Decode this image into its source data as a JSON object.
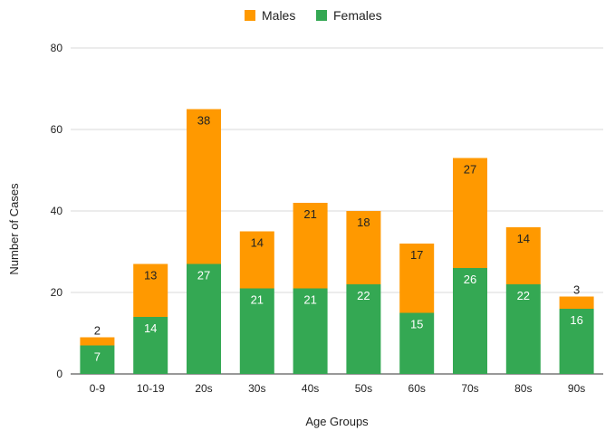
{
  "chart_data": {
    "type": "bar",
    "stacked": true,
    "categories": [
      "0-9",
      "10-19",
      "20s",
      "30s",
      "40s",
      "50s",
      "60s",
      "70s",
      "80s",
      "90s"
    ],
    "series": [
      {
        "name": "Females",
        "color": "#34a853",
        "values": [
          7,
          14,
          27,
          21,
          21,
          22,
          15,
          26,
          22,
          16
        ]
      },
      {
        "name": "Males",
        "color": "#ff9900",
        "values": [
          2,
          13,
          38,
          14,
          21,
          18,
          17,
          27,
          14,
          3
        ]
      }
    ],
    "legend_order": [
      "Males",
      "Females"
    ],
    "legend_position": "top-center",
    "xlabel": "Age Groups",
    "ylabel": "Number of Cases",
    "ylim": [
      0,
      80
    ],
    "yticks": [
      0,
      20,
      40,
      60,
      80
    ],
    "grid": true
  }
}
